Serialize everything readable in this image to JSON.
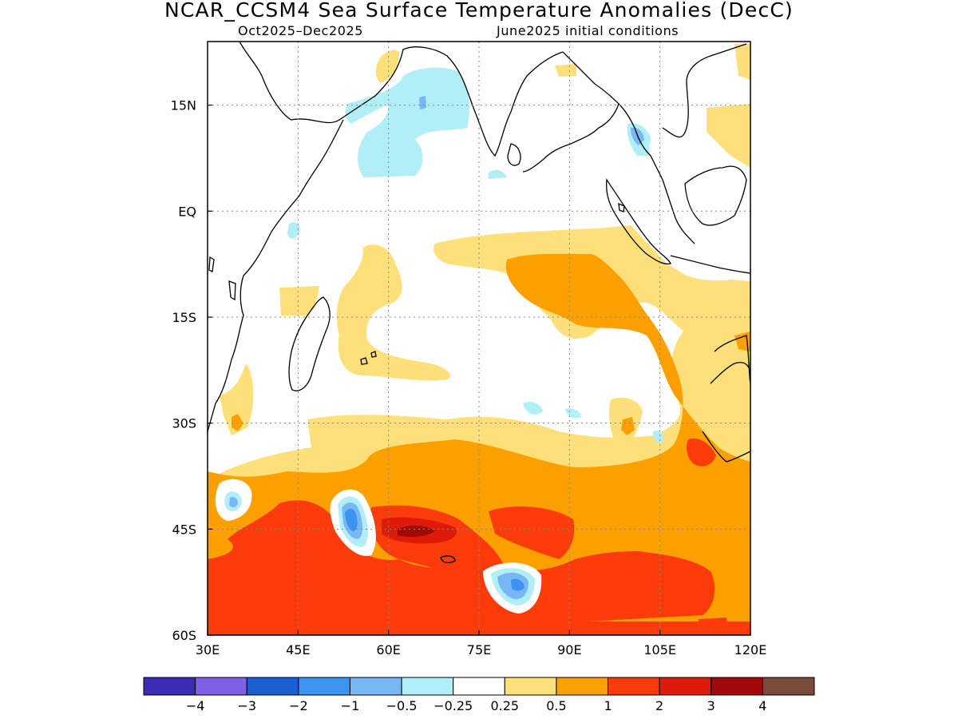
{
  "title": "NCAR_CCSM4 Sea Surface Temperature Anomalies (DecC)",
  "subtitle_left": "Oct2025–Dec2025",
  "subtitle_right": "June2025 initial conditions",
  "map": {
    "lon_range": [
      30,
      120
    ],
    "lat_range": [
      -60,
      24
    ],
    "lon_ticks": [
      {
        "value": 30,
        "label": "30E"
      },
      {
        "value": 45,
        "label": "45E"
      },
      {
        "value": 60,
        "label": "60E"
      },
      {
        "value": 75,
        "label": "75E"
      },
      {
        "value": 90,
        "label": "90E"
      },
      {
        "value": 105,
        "label": "105E"
      },
      {
        "value": 120,
        "label": "120E"
      }
    ],
    "lat_ticks": [
      {
        "value": 15,
        "label": "15N"
      },
      {
        "value": 0,
        "label": "EQ"
      },
      {
        "value": -15,
        "label": "15S"
      },
      {
        "value": -30,
        "label": "30S"
      },
      {
        "value": -45,
        "label": "45S"
      },
      {
        "value": -60,
        "label": "60S"
      }
    ],
    "grid": true
  },
  "colorbar": {
    "colors": [
      "#3a2bb5",
      "#8060e6",
      "#1a5fd0",
      "#3c93f0",
      "#78b6f5",
      "#b1eef8",
      "#ffffff",
      "#fde07a",
      "#fca000",
      "#fb3c0a",
      "#de1a0a",
      "#a00a0a",
      "#7a4a3a"
    ],
    "labels": [
      "−4",
      "−3",
      "−2",
      "−1",
      "−0.5",
      "−0.25",
      "0.25",
      "0.5",
      "1",
      "2",
      "3",
      "4"
    ]
  },
  "legend_colors": {
    "pale_yellow": "#fde07a",
    "orange": "#fca000",
    "red_orange": "#fb3c0a",
    "red": "#de1a0a",
    "dark_red": "#a00a0a",
    "light_cyan": "#b1eef8",
    "light_blue": "#78b6f5",
    "blue": "#3c93f0"
  }
}
